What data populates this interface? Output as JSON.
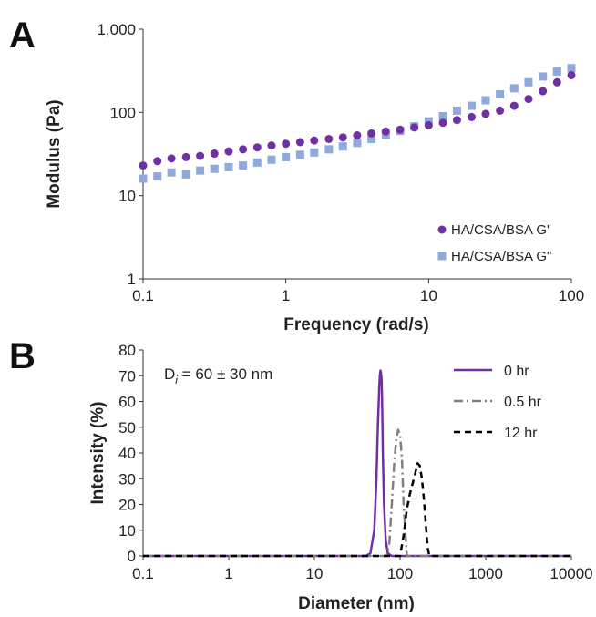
{
  "chart_data": [
    {
      "panel": "A",
      "type": "scatter",
      "xlabel": "Frequency (rad/s)",
      "ylabel": "Modulus (Pa)",
      "xscale": "log",
      "yscale": "log",
      "xlim": [
        0.1,
        100
      ],
      "ylim": [
        1,
        1000
      ],
      "x_ticks": [
        "0.1",
        "1",
        "10",
        "100"
      ],
      "y_ticks": [
        "1",
        "10",
        "100",
        "1,000"
      ],
      "grid": false,
      "legend_position": "bottom-right",
      "series": [
        {
          "name": "HA/CSA/BSA G'",
          "color": "#7030A0",
          "marker": "circle",
          "x": [
            0.1,
            0.126,
            0.158,
            0.2,
            0.251,
            0.316,
            0.398,
            0.501,
            0.631,
            0.794,
            1.0,
            1.26,
            1.58,
            2.0,
            2.51,
            3.16,
            3.98,
            5.01,
            6.31,
            7.94,
            10.0,
            12.6,
            15.8,
            20.0,
            25.1,
            31.6,
            39.8,
            50.1,
            63.1,
            79.4,
            100
          ],
          "y": [
            23,
            26,
            28,
            29,
            30,
            32,
            34,
            36,
            38,
            40,
            42,
            44,
            46,
            48,
            50,
            53,
            56,
            59,
            62,
            66,
            70,
            75,
            81,
            88,
            96,
            105,
            120,
            145,
            180,
            230,
            280
          ]
        },
        {
          "name": "HA/CSA/BSA G\"",
          "color": "#8EA9DB",
          "marker": "square",
          "x": [
            0.1,
            0.126,
            0.158,
            0.2,
            0.251,
            0.316,
            0.398,
            0.501,
            0.631,
            0.794,
            1.0,
            1.26,
            1.58,
            2.0,
            2.51,
            3.16,
            3.98,
            5.01,
            6.31,
            7.94,
            10.0,
            12.6,
            15.8,
            20.0,
            25.1,
            31.6,
            39.8,
            50.1,
            63.1,
            79.4,
            100
          ],
          "y": [
            16,
            17,
            19,
            18,
            20,
            21,
            22,
            23,
            25,
            27,
            29,
            31,
            33,
            36,
            39,
            43,
            48,
            54,
            60,
            68,
            78,
            90,
            105,
            120,
            140,
            165,
            195,
            230,
            270,
            310,
            340
          ]
        }
      ]
    },
    {
      "panel": "B",
      "type": "line",
      "xlabel": "Diameter (nm)",
      "ylabel": "Intensity (%)",
      "xscale": "log",
      "xlim": [
        0.1,
        10000
      ],
      "ylim": [
        0,
        80
      ],
      "x_ticks": [
        "0.1",
        "1",
        "10",
        "100",
        "1000",
        "10000"
      ],
      "y_ticks": [
        "0",
        "10",
        "20",
        "30",
        "40",
        "50",
        "60",
        "70",
        "80"
      ],
      "grid": false,
      "legend_position": "top-right",
      "annotation": {
        "main": "D",
        "sub": "i",
        "rest": " = 60 ± 30 nm"
      },
      "series": [
        {
          "name": "0 hr",
          "color": "#7030A0",
          "dash": "solid",
          "x": [
            0.1,
            40,
            45,
            50,
            53,
            55,
            57,
            58,
            59,
            60,
            61,
            62,
            63,
            65,
            68,
            72,
            80,
            10000
          ],
          "y": [
            0,
            0,
            1,
            10,
            30,
            50,
            65,
            70,
            72,
            71,
            68,
            55,
            40,
            20,
            6,
            1,
            0,
            0
          ]
        },
        {
          "name": "0.5 hr",
          "color": "#808080",
          "dash": "dashdot",
          "x": [
            0.1,
            70,
            75,
            80,
            85,
            90,
            95,
            100,
            105,
            110,
            120,
            10000
          ],
          "y": [
            0,
            0,
            5,
            20,
            35,
            45,
            49,
            47,
            38,
            20,
            0,
            0
          ]
        },
        {
          "name": "12 hr",
          "color": "#000000",
          "dash": "dashed",
          "x": [
            0.1,
            100,
            110,
            120,
            130,
            140,
            150,
            160,
            170,
            180,
            190,
            200,
            210,
            220,
            10000
          ],
          "y": [
            0,
            0,
            8,
            18,
            24,
            28,
            32,
            36,
            35,
            30,
            22,
            12,
            3,
            0,
            0
          ]
        }
      ]
    }
  ]
}
